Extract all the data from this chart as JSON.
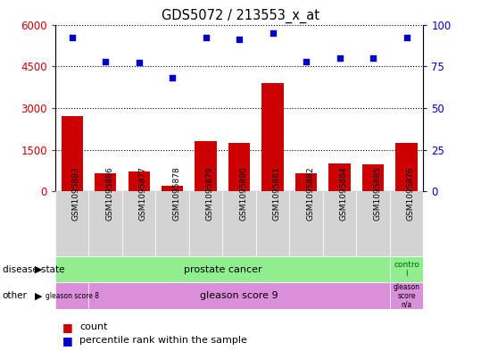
{
  "title": "GDS5072 / 213553_x_at",
  "samples": [
    "GSM1095883",
    "GSM1095886",
    "GSM1095877",
    "GSM1095878",
    "GSM1095879",
    "GSM1095880",
    "GSM1095881",
    "GSM1095882",
    "GSM1095884",
    "GSM1095885",
    "GSM1095876"
  ],
  "counts": [
    2700,
    650,
    700,
    200,
    1800,
    1750,
    3900,
    650,
    1000,
    980,
    1750
  ],
  "percentile_ranks": [
    92,
    78,
    77,
    68,
    92,
    91,
    95,
    78,
    80,
    80,
    92
  ],
  "ylim_left": [
    0,
    6000
  ],
  "ylim_right": [
    0,
    100
  ],
  "yticks_left": [
    0,
    1500,
    3000,
    4500,
    6000
  ],
  "yticks_right": [
    0,
    25,
    50,
    75,
    100
  ],
  "bar_color": "#cc0000",
  "dot_color": "#0000cc",
  "bg_color": "#d3d3d3",
  "disease_state_label": "disease state",
  "other_label": "other",
  "legend_items": [
    "count",
    "percentile rank within the sample"
  ],
  "background_color": "#ffffff",
  "tick_label_color_left": "#cc0000",
  "tick_label_color_right": "#0000cc",
  "prostate_cancer_color": "#90ee90",
  "control_color": "#90ee90",
  "gleason_color": "#da8fda"
}
